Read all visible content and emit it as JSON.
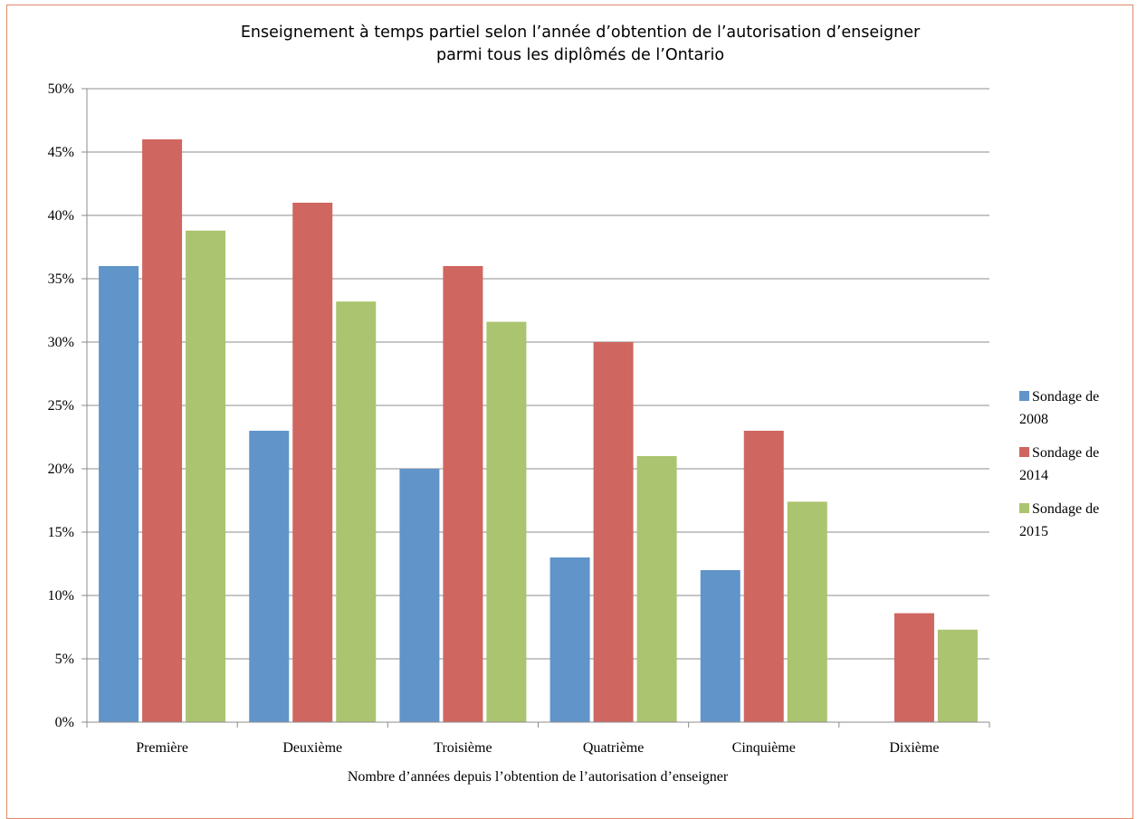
{
  "chart_data": {
    "type": "bar",
    "title": "Enseignement à temps partiel selon l’année d’obtention de l’autorisation d’enseigner",
    "subtitle": "parmi tous les diplômés de l’Ontario",
    "xlabel": "Nombre d’années depuis l’obtention de l’autorisation d’enseigner",
    "ylabel": "",
    "ylim": [
      0,
      50
    ],
    "y_ticks": [
      "0%",
      "5%",
      "10%",
      "15%",
      "20%",
      "25%",
      "30%",
      "35%",
      "40%",
      "45%",
      "50%"
    ],
    "grid": true,
    "legend_position": "right",
    "categories": [
      "Première",
      "Deuxième",
      "Troisième",
      "Quatrième",
      "Cinquième",
      "Dixième"
    ],
    "series": [
      {
        "name": "Sondage de 2008",
        "name_lines": [
          "Sondage de",
          "2008"
        ],
        "color": "#6194c9",
        "values": [
          36,
          23,
          20,
          13,
          12,
          null
        ]
      },
      {
        "name": "Sondage de 2014",
        "name_lines": [
          "Sondage de",
          "2014"
        ],
        "color": "#cf6660",
        "values": [
          46,
          41,
          36,
          30,
          23,
          8.6
        ]
      },
      {
        "name": "Sondage de 2015",
        "name_lines": [
          "Sondage de",
          "2015"
        ],
        "color": "#abc46f",
        "values": [
          38.8,
          33.2,
          31.6,
          21,
          17.4,
          7.3
        ]
      }
    ]
  }
}
